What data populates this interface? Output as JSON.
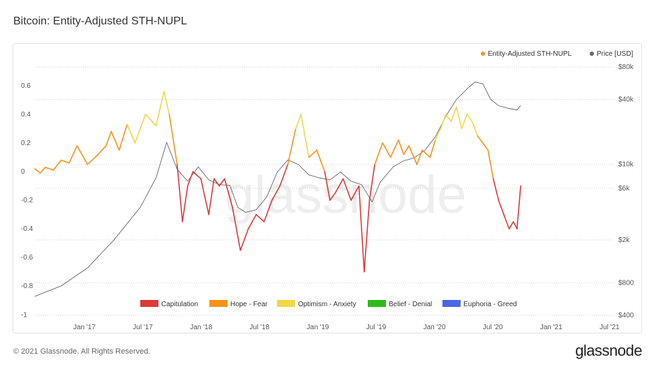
{
  "page": {
    "title": "Bitcoin: Entity-Adjusted STH-NUPL",
    "copyright": "© 2021 Glassnode. All Rights Reserved.",
    "brand": "glassnode",
    "watermark": "glassnode"
  },
  "chart_data": {
    "type": "line",
    "title": "Bitcoin: Entity-Adjusted STH-NUPL",
    "x_ticks": [
      "Jan '17",
      "Jul '17",
      "Jan '18",
      "Jul '18",
      "Jan '19",
      "Jul '19",
      "Jan '20",
      "Jul '20",
      "Jan '21",
      "Jul '21"
    ],
    "y_left": {
      "ticks": [
        "0.6",
        "0.4",
        "0.2",
        "0",
        "-0.2",
        "-0.4",
        "-0.6",
        "-0.8",
        "-1"
      ],
      "range": [
        -1,
        0.65
      ]
    },
    "y_right": {
      "ticks": [
        "$80k",
        "$40k",
        "$10k",
        "$6k",
        "$2k",
        "$800",
        "$400"
      ],
      "scale": "log"
    },
    "grid": "dotted horizontal",
    "legend_top": [
      {
        "label": "Entity-Adjusted STH-NUPL",
        "color": "#f7931a"
      },
      {
        "label": "Price [USD]",
        "color": "#666666"
      }
    ],
    "zones": [
      {
        "label": "Capitulation",
        "color": "#dc3a3a",
        "min": -1,
        "max": 0
      },
      {
        "label": "Hope - Fear",
        "color": "#f7931a",
        "min": 0,
        "max": 0.25
      },
      {
        "label": "Optimism - Anxiety",
        "color": "#f0d84a",
        "min": 0.25,
        "max": 0.5
      },
      {
        "label": "Belief - Denial",
        "color": "#2fba1c",
        "min": 0.5,
        "max": 0.75
      },
      {
        "label": "Euphoria - Greed",
        "color": "#4a68e0",
        "min": 0.75,
        "max": 1
      }
    ],
    "series": [
      {
        "name": "Entity-Adjusted STH-NUPL",
        "t": [
          0,
          0.1,
          0.2,
          0.35,
          0.5,
          0.65,
          0.8,
          1.0,
          1.2,
          1.35,
          1.45,
          1.6,
          1.75,
          1.9,
          2.1,
          2.3,
          2.45,
          2.55,
          2.7,
          2.8,
          2.9,
          3.0,
          3.15,
          3.3,
          3.4,
          3.5,
          3.6,
          3.75,
          3.9,
          4.05,
          4.2,
          4.35,
          4.5,
          4.65,
          4.8,
          4.95,
          5.05,
          5.2,
          5.35,
          5.5,
          5.6,
          5.7,
          5.85,
          6.0,
          6.15,
          6.25,
          6.35,
          6.45,
          6.6,
          6.75,
          6.9,
          7.0,
          7.1,
          7.25,
          7.35,
          7.5,
          7.6,
          7.7,
          7.8,
          7.9,
          8.0,
          8.1,
          8.2,
          8.3,
          8.4,
          8.5,
          8.6,
          8.7,
          8.8,
          8.9,
          9.0,
          9.08,
          9.15,
          9.22
        ],
        "values": [
          0.02,
          -0.01,
          0.03,
          0.01,
          0.08,
          0.06,
          0.18,
          0.05,
          0.12,
          0.18,
          0.28,
          0.15,
          0.33,
          0.2,
          0.4,
          0.32,
          0.56,
          0.4,
          0.05,
          -0.35,
          -0.1,
          0.0,
          -0.05,
          -0.3,
          -0.05,
          -0.1,
          -0.05,
          -0.25,
          -0.55,
          -0.4,
          -0.3,
          -0.35,
          -0.2,
          -0.1,
          0.05,
          0.3,
          0.4,
          0.1,
          0.15,
          0.0,
          -0.2,
          -0.15,
          -0.05,
          -0.2,
          -0.1,
          -0.7,
          -0.2,
          0.05,
          0.2,
          0.1,
          0.22,
          0.12,
          0.18,
          0.05,
          0.15,
          0.1,
          0.22,
          0.3,
          0.4,
          0.35,
          0.45,
          0.3,
          0.4,
          0.35,
          0.25,
          0.2,
          0.15,
          -0.05,
          -0.2,
          -0.3,
          -0.4,
          -0.35,
          -0.4,
          -0.1
        ]
      },
      {
        "name": "Price [USD]",
        "t": [
          0,
          0.5,
          1.0,
          1.5,
          2.0,
          2.3,
          2.5,
          2.7,
          2.9,
          3.1,
          3.3,
          3.5,
          3.7,
          3.85,
          4.0,
          4.2,
          4.4,
          4.6,
          4.8,
          5.0,
          5.2,
          5.4,
          5.6,
          5.8,
          6.0,
          6.2,
          6.4,
          6.55,
          6.8,
          7.0,
          7.2,
          7.4,
          7.6,
          7.8,
          8.0,
          8.2,
          8.35,
          8.5,
          8.65,
          8.8,
          9.0,
          9.15,
          9.22
        ],
        "values": [
          600,
          750,
          1100,
          2000,
          4000,
          7500,
          16000,
          9000,
          7000,
          9500,
          7200,
          6500,
          6400,
          4000,
          3600,
          3800,
          5000,
          8500,
          11000,
          10000,
          8000,
          7500,
          7200,
          8500,
          7000,
          6500,
          4500,
          6800,
          9500,
          10800,
          11500,
          13500,
          18000,
          28000,
          40000,
          50000,
          58000,
          56000,
          40000,
          35000,
          33000,
          32000,
          35000
        ]
      }
    ]
  }
}
